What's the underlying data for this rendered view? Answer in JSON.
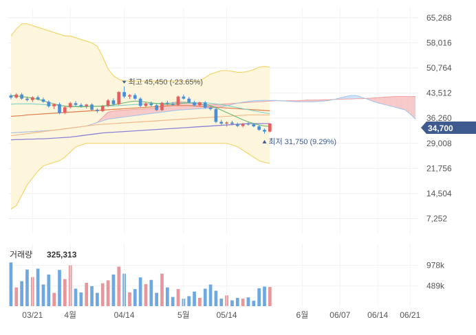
{
  "current_price_badge": "34,700",
  "volume_label": "거래량",
  "volume_value": "325,313",
  "annotations": {
    "high": "최고 45,450 (-23.65%)",
    "low": "최저 31,750 (9.29%)"
  },
  "colors": {
    "up": "#e35f5f",
    "down": "#4a8fd6",
    "badge": "#3f5a8f",
    "vol_up": "#e8959c",
    "vol_down": "#6ea8e0",
    "cloud_up": "#f7c9c9",
    "cloud_down": "#cfe3f7",
    "envelope_fill": "#fdf6dc",
    "envelope_line": "#f2d56b"
  },
  "chart_data": [
    {
      "type": "candlestick",
      "title": "",
      "y_ticks": [
        "65,268",
        "58,016",
        "50,764",
        "43,512",
        "36,260",
        "29,008",
        "21,756",
        "14,504",
        "7,252"
      ],
      "ylim": [
        3000,
        68000
      ],
      "x_ticks": [
        "03/21",
        "4월",
        "04/14",
        "5월",
        "05/14",
        "6월",
        "06/07",
        "06/14",
        "06/21"
      ],
      "x_tick_index": [
        4,
        11,
        21,
        32,
        40,
        54,
        61,
        68,
        74
      ],
      "x_count": 76,
      "ohlc": [
        [
          42800,
          43300,
          41700,
          42200
        ],
        [
          42200,
          43500,
          41900,
          43100
        ],
        [
          43100,
          43600,
          41600,
          41900
        ],
        [
          41900,
          42500,
          41100,
          41500
        ],
        [
          41500,
          42600,
          40900,
          42300
        ],
        [
          42300,
          42800,
          41400,
          41700
        ],
        [
          41700,
          42200,
          40700,
          41000
        ],
        [
          41000,
          41400,
          39300,
          39700
        ],
        [
          39700,
          40500,
          38900,
          40300
        ],
        [
          40300,
          40800,
          37400,
          37800
        ],
        [
          37800,
          39800,
          37400,
          39400
        ],
        [
          39400,
          41000,
          39000,
          40600
        ],
        [
          40600,
          41200,
          39700,
          40100
        ],
        [
          40100,
          40600,
          39300,
          39700
        ],
        [
          39700,
          40400,
          39000,
          40200
        ],
        [
          40200,
          40600,
          38300,
          38700
        ],
        [
          38700,
          39100,
          37800,
          38300
        ],
        [
          38300,
          40100,
          38000,
          39800
        ],
        [
          39800,
          41800,
          39500,
          41400
        ],
        [
          41400,
          42000,
          39900,
          40300
        ],
        [
          40300,
          44100,
          40000,
          43800
        ],
        [
          43800,
          45450,
          42000,
          42500
        ],
        [
          42500,
          43200,
          41800,
          42900
        ],
        [
          42900,
          43400,
          41600,
          41900
        ],
        [
          41900,
          42300,
          39400,
          39800
        ],
        [
          39800,
          40800,
          39400,
          40500
        ],
        [
          40500,
          41100,
          39600,
          40000
        ],
        [
          40000,
          40500,
          38300,
          38600
        ],
        [
          38600,
          41000,
          38300,
          40700
        ],
        [
          40700,
          41300,
          40000,
          40400
        ],
        [
          40400,
          40900,
          39800,
          40100
        ],
        [
          40100,
          42800,
          39800,
          42500
        ],
        [
          42500,
          43100,
          41600,
          41900
        ],
        [
          41900,
          42400,
          40500,
          40800
        ],
        [
          40800,
          41300,
          39700,
          40000
        ],
        [
          40000,
          41000,
          39600,
          40800
        ],
        [
          40800,
          41200,
          39000,
          39300
        ],
        [
          39300,
          39700,
          38500,
          38900
        ],
        [
          38900,
          39300,
          34800,
          35200
        ],
        [
          35200,
          35800,
          34300,
          34700
        ],
        [
          34700,
          35300,
          33800,
          35000
        ],
        [
          35000,
          35500,
          34200,
          34600
        ],
        [
          34600,
          35000,
          33700,
          34000
        ],
        [
          34000,
          34900,
          33600,
          34600
        ],
        [
          34600,
          35100,
          34100,
          34500
        ],
        [
          34500,
          34900,
          33600,
          33900
        ],
        [
          33900,
          34300,
          32600,
          32900
        ],
        [
          32900,
          33300,
          31750,
          32400
        ],
        [
          32400,
          34800,
          32200,
          34700
        ]
      ],
      "volume": [
        1050,
        450,
        600,
        880,
        700,
        900,
        520,
        760,
        320,
        870,
        650,
        980,
        420,
        330,
        560,
        480,
        320,
        550,
        620,
        760,
        950,
        780,
        330,
        410,
        690,
        530,
        630,
        320,
        780,
        450,
        220,
        410,
        180,
        240,
        350,
        200,
        420,
        520,
        370,
        180,
        260,
        140,
        200,
        180,
        210,
        130,
        430,
        470,
        460
      ],
      "volume_yticks": [
        "978k",
        "489k"
      ],
      "volume_ylim": [
        0,
        1500
      ],
      "indicators": {
        "ma_short": [
          42800,
          42700,
          42500,
          42300,
          42000,
          41700,
          41300,
          40800,
          40400,
          40000,
          39700,
          39600,
          39600,
          39500,
          39600,
          39700,
          39700,
          39800,
          39900,
          40100,
          40400,
          40700,
          41000,
          41200,
          41100,
          40900,
          40700,
          40500,
          40400,
          40300,
          40300,
          40400,
          40600,
          40700,
          40600,
          40400,
          40200,
          39900,
          39300,
          38600,
          37900,
          37200,
          36500,
          35800,
          35200,
          34700,
          34300,
          34000,
          33900
        ],
        "ma_mid": [
          40300,
          40400,
          40400,
          40400,
          40400,
          40300,
          40200,
          40100,
          40000,
          39900,
          39800,
          39700,
          39700,
          39700,
          39700,
          39700,
          39700,
          39700,
          39800,
          39800,
          39900,
          40000,
          40100,
          40200,
          40300,
          40400,
          40500,
          40500,
          40600,
          40600,
          40700,
          40700,
          40800,
          40800,
          40800,
          40800,
          40700,
          40600,
          40400,
          40200,
          39900,
          39600,
          39300,
          39000,
          38700,
          38400,
          38100,
          37800,
          37600
        ],
        "ma_long": [
          36800,
          36900,
          37000,
          37200,
          37300,
          37400,
          37500,
          37600,
          37700,
          37800,
          37900,
          38000,
          38100,
          38200,
          38300,
          38400,
          38500,
          38600,
          38700,
          38800,
          38900,
          39000,
          39100,
          39200,
          39300,
          39400,
          39500,
          39600,
          39700,
          39800,
          39900,
          39900,
          39900,
          39900,
          39800,
          39700,
          39600,
          39500,
          39400,
          39300,
          39200,
          39100,
          39000,
          38900,
          38800,
          38700,
          38600,
          38500,
          38400
        ],
        "ma_very_long": [
          31200,
          31400,
          31600,
          31800,
          32000,
          32200,
          32400,
          32600,
          32800,
          33000,
          33200,
          33400,
          33600,
          33800,
          34000,
          34200,
          34400,
          34500,
          34600,
          34700,
          34800,
          34900,
          35000,
          35100,
          35200,
          35300,
          35400,
          35500,
          35600,
          35700,
          35800,
          35900,
          36000,
          36100,
          36200,
          36300,
          36400,
          36500,
          36600,
          36700,
          36800,
          36900,
          37000,
          37100,
          37200,
          37200,
          37200,
          37200,
          37200
        ],
        "baseline": [
          30000,
          30100,
          30100,
          30200,
          30200,
          30300,
          30300,
          30400,
          30500,
          30600,
          30700,
          30800,
          31000,
          31200,
          31400,
          31600,
          31800,
          32000,
          32100,
          32200,
          32300,
          32400,
          32500,
          32600,
          32700,
          32800,
          32900,
          33000,
          33100,
          33200,
          33300,
          33400,
          33500,
          33600,
          33700,
          33800,
          33900,
          34000,
          34100,
          34200,
          34300,
          34400,
          34500,
          34600,
          34700,
          34700,
          34700,
          34700,
          34700
        ],
        "envelope_upper": [
          60000,
          62000,
          63500,
          63500,
          63000,
          62500,
          62000,
          61500,
          61000,
          60500,
          60000,
          60000,
          59500,
          59000,
          58500,
          58000,
          57000,
          54000,
          50500,
          48500,
          47500,
          47000,
          47000,
          47000,
          47000,
          47000,
          47000,
          47000,
          47000,
          47000,
          47000,
          47000,
          47000,
          47000,
          47000,
          47000,
          48000,
          49000,
          49500,
          50000,
          50000,
          49800,
          49500,
          49500,
          49800,
          50300,
          51000,
          51200,
          51000
        ],
        "envelope_lower": [
          10000,
          11000,
          14000,
          17000,
          19000,
          21000,
          22500,
          23000,
          23500,
          24000,
          25000,
          26500,
          28000,
          28500,
          29000,
          29000,
          29000,
          29000,
          29000,
          29000,
          29000,
          29000,
          29000,
          29000,
          29000,
          29000,
          29000,
          29000,
          29000,
          29000,
          29000,
          29000,
          29000,
          29000,
          29000,
          29000,
          29000,
          29000,
          29000,
          29000,
          29000,
          28500,
          28000,
          27000,
          26000,
          25000,
          24000,
          23500,
          23200
        ],
        "cloud_a": [
          32000,
          32100,
          32200,
          32300,
          32400,
          32500,
          32600,
          32700,
          32800,
          33000,
          33200,
          33400,
          33600,
          33800,
          34000,
          34500,
          35000,
          36500,
          38000,
          38300,
          38500,
          38600,
          38700,
          38800,
          38900,
          39000,
          39100,
          39200,
          40000,
          40500,
          40800,
          41000,
          41000,
          40800,
          40500,
          40300,
          40200,
          40200,
          40200,
          40300,
          40400,
          40500,
          40600,
          40700,
          40800,
          40900,
          41000,
          41100,
          41200,
          41300,
          41300,
          41300,
          41300,
          41300,
          41400,
          41500,
          41500,
          41500,
          41600,
          41600,
          41700,
          41700,
          41800,
          41800,
          41900,
          41900,
          42000,
          42100,
          42200,
          42300,
          42400,
          42500,
          42500,
          42500,
          42500,
          42500
        ],
        "cloud_b": [
          32000,
          32100,
          32200,
          32300,
          32400,
          32500,
          32600,
          32700,
          32800,
          33000,
          33200,
          33400,
          33600,
          33800,
          34000,
          34500,
          35000,
          35500,
          36000,
          36200,
          36400,
          36600,
          36800,
          37000,
          37200,
          37400,
          37600,
          37800,
          38000,
          38200,
          38400,
          38600,
          38700,
          38800,
          38900,
          39000,
          39100,
          39200,
          39300,
          39500,
          39800,
          40200,
          40600,
          40900,
          41100,
          41300,
          41400,
          41400,
          41400,
          41400,
          41300,
          41200,
          41100,
          41000,
          41000,
          41000,
          41000,
          41100,
          41200,
          41400,
          41700,
          42100,
          42500,
          42800,
          42800,
          42300,
          41800,
          41200,
          40700,
          40300,
          39900,
          39500,
          39100,
          38700,
          37500,
          36000
        ]
      }
    }
  ]
}
